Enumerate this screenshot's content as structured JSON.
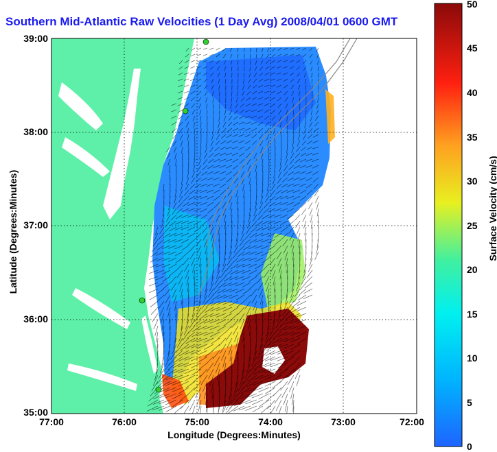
{
  "title": "Southern Mid-Atlantic Raw Velocities (1 Day Avg) 2008/04/01 0600 GMT",
  "xlabel": "Longitude (Degrees:Minutes)",
  "ylabel": "Latitude (Degrees:Minutes)",
  "colorbar_label": "Surface Velocity (cm/s)",
  "x_ticks": [
    "77:00",
    "76:00",
    "75:00",
    "74:00",
    "73:00",
    "72:00"
  ],
  "y_ticks": [
    "39:00",
    "38:00",
    "37:00",
    "36:00",
    "35:00"
  ],
  "colorbar_ticks": [
    "50",
    "45",
    "40",
    "35",
    "30",
    "25",
    "20",
    "15",
    "10",
    "5",
    "0"
  ],
  "colors": {
    "land": "#5ef0a8",
    "title": "#1a1af0",
    "low": "#1e64ff",
    "high": "#8b0a0a"
  },
  "chart_data": {
    "type": "heatmap",
    "title": "Southern Mid-Atlantic Raw Velocities (1 Day Avg) 2008/04/01 0600 GMT",
    "xlabel": "Longitude (Degrees:Minutes)",
    "ylabel": "Latitude (Degrees:Minutes)",
    "xlim": [
      -77,
      -72
    ],
    "ylim": [
      35,
      39
    ],
    "grid": true,
    "colorbar": {
      "label": "Surface Velocity (cm/s)",
      "range": [
        0,
        50
      ],
      "ticks": [
        0,
        5,
        10,
        15,
        20,
        25,
        30,
        35,
        40,
        45,
        50
      ]
    }
  }
}
